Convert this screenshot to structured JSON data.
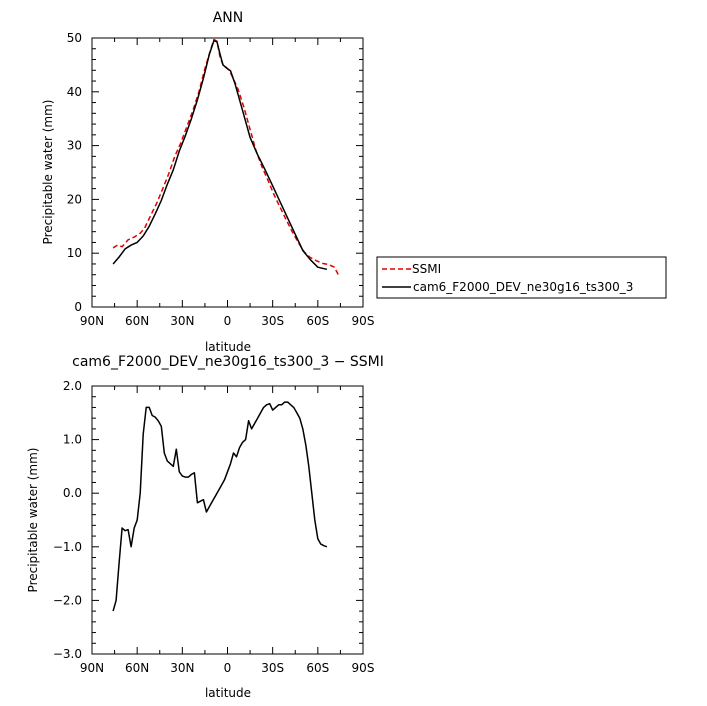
{
  "chart_data": [
    {
      "type": "line",
      "title": "ANN",
      "xlabel": "latitude",
      "ylabel": "Precipitable water (mm)",
      "xlim": [
        90,
        -90
      ],
      "ylim": [
        0,
        50
      ],
      "xticks": [
        90,
        60,
        30,
        0,
        -30,
        -60,
        -90
      ],
      "xtick_labels": [
        "90N",
        "60N",
        "30N",
        "0",
        "30S",
        "60S",
        "90S"
      ],
      "yticks": [
        0,
        10,
        20,
        30,
        40,
        50
      ],
      "ytick_labels": [
        "0",
        "10",
        "20",
        "30",
        "40",
        "50"
      ],
      "legend_position": "right",
      "series": [
        {
          "name": "SSMI",
          "color": "#e00000",
          "dash": true,
          "x": [
            76,
            73,
            70,
            66,
            62,
            58,
            55,
            51,
            47,
            43,
            39,
            35,
            31,
            27,
            23,
            19,
            15,
            11,
            9,
            7,
            5,
            3,
            1,
            -1,
            -3,
            -7,
            -11,
            -15,
            -19,
            -23,
            -27,
            -31,
            -35,
            -39,
            -43,
            -47,
            -51,
            -55,
            -59,
            -63,
            -67,
            -71,
            -74
          ],
          "y": [
            11.0,
            11.5,
            11.2,
            12.5,
            13.0,
            13.7,
            14.7,
            17.0,
            19.3,
            22.0,
            24.8,
            28.0,
            30.5,
            33.5,
            36.5,
            40.0,
            44.3,
            48.0,
            49.7,
            49.4,
            46.5,
            45.0,
            44.6,
            44.0,
            43.0,
            40.5,
            37.0,
            33.0,
            29.0,
            26.0,
            23.5,
            20.8,
            18.5,
            16.2,
            14.0,
            12.0,
            10.2,
            9.2,
            8.6,
            8.1,
            7.9,
            7.4,
            5.8
          ]
        },
        {
          "name": "cam6_F2000_DEV_ne30g16_ts300_3",
          "color": "#000000",
          "dash": false,
          "x": [
            76,
            72,
            68,
            64,
            60,
            56,
            52,
            48,
            44,
            40,
            36,
            32,
            28,
            24,
            20,
            16,
            12,
            9,
            7,
            5,
            3,
            1,
            -2,
            -5,
            -10,
            -15,
            -20,
            -25,
            -30,
            -35,
            -40,
            -45,
            -50,
            -55,
            -60,
            -63,
            -66
          ],
          "y": [
            8.0,
            9.3,
            10.8,
            11.5,
            12.0,
            13.2,
            15.0,
            17.3,
            19.8,
            22.8,
            25.5,
            29.0,
            31.8,
            35.0,
            38.5,
            42.5,
            47.0,
            49.5,
            49.3,
            47.0,
            45.0,
            44.5,
            43.9,
            41.5,
            36.5,
            31.5,
            28.3,
            25.5,
            22.5,
            19.5,
            16.5,
            13.5,
            10.5,
            8.8,
            7.4,
            7.2,
            7.0
          ]
        }
      ]
    },
    {
      "type": "line",
      "title": "cam6_F2000_DEV_ne30g16_ts300_3 − SSMI",
      "xlabel": "latitude",
      "ylabel": "Precipitable water (mm)",
      "xlim": [
        90,
        -90
      ],
      "ylim": [
        -3.0,
        2.0
      ],
      "xticks": [
        90,
        60,
        30,
        0,
        -30,
        -60,
        -90
      ],
      "xtick_labels": [
        "90N",
        "60N",
        "30N",
        "0",
        "30S",
        "60S",
        "90S"
      ],
      "yticks": [
        -3.0,
        -2.0,
        -1.0,
        0.0,
        1.0,
        2.0
      ],
      "ytick_labels": [
        "−3.0",
        "−2.0",
        "−1.0",
        "0.0",
        "1.0",
        "2.0"
      ],
      "series": [
        {
          "color": "#000000",
          "dash": false,
          "x": [
            76,
            74,
            72,
            70,
            68,
            66,
            64,
            62,
            60,
            58,
            56,
            54,
            52,
            50,
            48,
            46,
            44,
            42,
            40,
            38,
            36,
            34,
            32,
            30,
            28,
            26,
            24,
            22,
            20,
            18,
            16,
            14,
            12,
            10,
            8,
            6,
            4,
            2,
            0,
            -2,
            -4,
            -6,
            -8,
            -10,
            -12,
            -14,
            -16,
            -18,
            -20,
            -22,
            -24,
            -26,
            -28,
            -30,
            -32,
            -34,
            -36,
            -38,
            -40,
            -42,
            -44,
            -46,
            -48,
            -50,
            -52,
            -54,
            -56,
            -58,
            -60,
            -62,
            -64,
            -66
          ],
          "y": [
            -2.2,
            -2.0,
            -1.3,
            -0.65,
            -0.7,
            -0.68,
            -1.0,
            -0.65,
            -0.5,
            0.0,
            1.1,
            1.6,
            1.6,
            1.45,
            1.42,
            1.35,
            1.25,
            0.75,
            0.6,
            0.55,
            0.5,
            0.82,
            0.4,
            0.32,
            0.3,
            0.3,
            0.35,
            0.38,
            -0.18,
            -0.15,
            -0.12,
            -0.35,
            -0.25,
            -0.15,
            -0.05,
            0.05,
            0.15,
            0.25,
            0.4,
            0.55,
            0.75,
            0.68,
            0.85,
            0.95,
            1.0,
            1.35,
            1.2,
            1.3,
            1.4,
            1.5,
            1.6,
            1.65,
            1.67,
            1.55,
            1.6,
            1.65,
            1.65,
            1.7,
            1.7,
            1.65,
            1.6,
            1.5,
            1.4,
            1.2,
            0.9,
            0.5,
            0.0,
            -0.5,
            -0.85,
            -0.95,
            -0.98,
            -1.0
          ]
        }
      ]
    }
  ]
}
